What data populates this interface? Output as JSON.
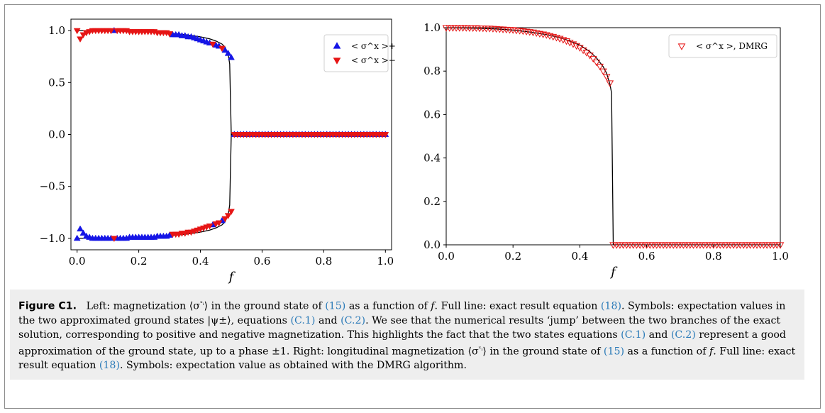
{
  "chart_data": [
    {
      "type": "scatter",
      "xlabel": "f",
      "ylabel": "",
      "xlim": [
        -0.02,
        1.02
      ],
      "ylim": [
        -1.11,
        1.11
      ],
      "xticks": [
        "0.0",
        "0.2",
        "0.4",
        "0.6",
        "0.8",
        "1.0"
      ],
      "yticks": [
        "−1.0",
        "−0.5",
        "0.0",
        "0.5",
        "1.0"
      ],
      "legend_position": "top-right",
      "exact_line_color": "#000000",
      "series": [
        {
          "name": "< σ^x >+",
          "marker": "triangle-up",
          "color": "#1515e6",
          "x": [
            0.0,
            0.01,
            0.02,
            0.03,
            0.04,
            0.05,
            0.06,
            0.07,
            0.08,
            0.09,
            0.1,
            0.11,
            0.12,
            0.13,
            0.14,
            0.15,
            0.16,
            0.17,
            0.18,
            0.19,
            0.2,
            0.21,
            0.22,
            0.23,
            0.24,
            0.25,
            0.26,
            0.27,
            0.28,
            0.29,
            0.3,
            0.31,
            0.32,
            0.33,
            0.34,
            0.35,
            0.36,
            0.37,
            0.38,
            0.39,
            0.4,
            0.41,
            0.42,
            0.43,
            0.44,
            0.45,
            0.46,
            0.47,
            0.48,
            0.49,
            0.5,
            0.51,
            0.52,
            0.53,
            0.54,
            0.55,
            0.56,
            0.57,
            0.58,
            0.59,
            0.6,
            0.61,
            0.62,
            0.63,
            0.64,
            0.65,
            0.66,
            0.67,
            0.68,
            0.69,
            0.7,
            0.71,
            0.72,
            0.73,
            0.74,
            0.75,
            0.76,
            0.77,
            0.78,
            0.79,
            0.8,
            0.81,
            0.82,
            0.83,
            0.84,
            0.85,
            0.86,
            0.87,
            0.88,
            0.89,
            0.9,
            0.91,
            0.92,
            0.93,
            0.94,
            0.95,
            0.96,
            0.97,
            0.98,
            0.99,
            1.0
          ],
          "y": [
            -1.0,
            -0.91,
            -0.95,
            -0.98,
            -0.99,
            -1.0,
            -1.0,
            -1.0,
            -1.0,
            -1.0,
            -1.0,
            -1.0,
            1.0,
            -1.0,
            -1.0,
            -1.0,
            -1.0,
            -0.99,
            -0.99,
            -0.99,
            -0.99,
            -0.99,
            -0.99,
            -0.99,
            -0.99,
            -0.99,
            -0.98,
            -0.98,
            -0.98,
            -0.98,
            -0.97,
            0.96,
            0.96,
            0.96,
            0.95,
            0.95,
            0.94,
            0.94,
            0.93,
            0.92,
            0.91,
            0.9,
            0.89,
            0.88,
            -0.87,
            0.86,
            0.85,
            -0.83,
            0.81,
            0.78,
            0.74,
            0.0,
            0.0,
            0.0,
            0.0,
            0.0,
            0.0,
            0.0,
            0.0,
            0.0,
            0.0,
            0.0,
            0.0,
            0.0,
            0.0,
            0.0,
            0.0,
            0.0,
            0.0,
            0.0,
            0.0,
            0.0,
            0.0,
            0.0,
            0.0,
            0.0,
            0.0,
            0.0,
            0.0,
            0.0,
            0.0,
            0.0,
            0.0,
            0.0,
            0.0,
            0.0,
            0.0,
            0.0,
            0.0,
            0.0,
            0.0,
            0.0,
            0.0,
            0.0,
            0.0,
            0.0,
            0.0,
            0.0,
            0.0,
            0.0,
            0.0
          ]
        },
        {
          "name": "< σ^x >−",
          "marker": "triangle-down",
          "color": "#e61515",
          "x": [
            0.0,
            0.01,
            0.02,
            0.03,
            0.04,
            0.05,
            0.06,
            0.07,
            0.08,
            0.09,
            0.1,
            0.11,
            0.12,
            0.13,
            0.14,
            0.15,
            0.16,
            0.17,
            0.18,
            0.19,
            0.2,
            0.21,
            0.22,
            0.23,
            0.24,
            0.25,
            0.26,
            0.27,
            0.28,
            0.29,
            0.3,
            0.31,
            0.32,
            0.33,
            0.34,
            0.35,
            0.36,
            0.37,
            0.38,
            0.39,
            0.4,
            0.41,
            0.42,
            0.43,
            0.44,
            0.45,
            0.46,
            0.47,
            0.48,
            0.49,
            0.5,
            0.51,
            0.52,
            0.53,
            0.54,
            0.55,
            0.56,
            0.57,
            0.58,
            0.59,
            0.6,
            0.61,
            0.62,
            0.63,
            0.64,
            0.65,
            0.66,
            0.67,
            0.68,
            0.69,
            0.7,
            0.71,
            0.72,
            0.73,
            0.74,
            0.75,
            0.76,
            0.77,
            0.78,
            0.79,
            0.8,
            0.81,
            0.82,
            0.83,
            0.84,
            0.85,
            0.86,
            0.87,
            0.88,
            0.89,
            0.9,
            0.91,
            0.92,
            0.93,
            0.94,
            0.95,
            0.96,
            0.97,
            0.98,
            0.99,
            1.0
          ],
          "y": [
            1.0,
            0.92,
            0.96,
            0.98,
            0.99,
            1.0,
            1.0,
            1.0,
            1.0,
            1.0,
            1.0,
            1.0,
            -1.0,
            1.0,
            1.0,
            1.0,
            1.0,
            0.99,
            0.99,
            0.99,
            0.99,
            0.99,
            0.99,
            0.99,
            0.99,
            0.99,
            0.98,
            0.98,
            0.98,
            0.98,
            0.97,
            -0.96,
            -0.96,
            -0.96,
            -0.95,
            -0.95,
            -0.94,
            -0.94,
            -0.93,
            -0.92,
            -0.91,
            -0.9,
            -0.89,
            -0.88,
            0.87,
            -0.86,
            -0.85,
            0.83,
            -0.81,
            -0.78,
            -0.74,
            0.0,
            0.0,
            0.0,
            0.0,
            0.0,
            0.0,
            0.0,
            0.0,
            0.0,
            0.0,
            0.0,
            0.0,
            0.0,
            0.0,
            0.0,
            0.0,
            0.0,
            0.0,
            0.0,
            0.0,
            0.0,
            0.0,
            0.0,
            0.0,
            0.0,
            0.0,
            0.0,
            0.0,
            0.0,
            0.0,
            0.0,
            0.0,
            0.0,
            0.0,
            0.0,
            0.0,
            0.0,
            0.0,
            0.0,
            0.0,
            0.0,
            0.0,
            0.0,
            0.0,
            0.0,
            0.0,
            0.0,
            0.0,
            0.0,
            0.0
          ]
        }
      ],
      "exact_line": {
        "x": [
          0.0,
          0.05,
          0.1,
          0.15,
          0.2,
          0.25,
          0.3,
          0.35,
          0.4,
          0.43,
          0.45,
          0.47,
          0.48,
          0.49,
          0.495,
          0.5,
          0.505,
          0.55,
          0.6,
          0.7,
          0.8,
          0.9,
          1.0
        ],
        "y_upper": [
          1.0,
          1.0,
          0.997,
          0.994,
          0.989,
          0.983,
          0.974,
          0.961,
          0.94,
          0.92,
          0.9,
          0.87,
          0.84,
          0.77,
          0.68,
          0.0,
          0.0,
          0.0,
          0.0,
          0.0,
          0.0,
          0.0,
          0.0
        ]
      }
    },
    {
      "type": "scatter",
      "xlabel": "f",
      "ylabel": "",
      "xlim": [
        0.0,
        1.0
      ],
      "ylim": [
        0.0,
        1.0
      ],
      "xticks": [
        "0.0",
        "0.2",
        "0.4",
        "0.6",
        "0.8",
        "1.0"
      ],
      "yticks": [
        "0.0",
        "0.2",
        "0.4",
        "0.6",
        "0.8",
        "1.0"
      ],
      "legend_position": "top-right",
      "exact_line_color": "#000000",
      "series": [
        {
          "name": "< σ^x >, DMRG",
          "marker": "triangle-down-open",
          "color": "#e61515",
          "x": [
            0.0,
            0.01,
            0.02,
            0.03,
            0.04,
            0.05,
            0.06,
            0.07,
            0.08,
            0.09,
            0.1,
            0.11,
            0.12,
            0.13,
            0.14,
            0.15,
            0.16,
            0.17,
            0.18,
            0.19,
            0.2,
            0.21,
            0.22,
            0.23,
            0.24,
            0.25,
            0.26,
            0.27,
            0.28,
            0.29,
            0.3,
            0.31,
            0.32,
            0.33,
            0.34,
            0.35,
            0.36,
            0.37,
            0.38,
            0.39,
            0.4,
            0.41,
            0.42,
            0.43,
            0.44,
            0.45,
            0.46,
            0.47,
            0.48,
            0.49,
            0.5,
            0.51,
            0.52,
            0.53,
            0.54,
            0.55,
            0.56,
            0.57,
            0.58,
            0.59,
            0.6,
            0.61,
            0.62,
            0.63,
            0.64,
            0.65,
            0.66,
            0.67,
            0.68,
            0.69,
            0.7,
            0.71,
            0.72,
            0.73,
            0.74,
            0.75,
            0.76,
            0.77,
            0.78,
            0.79,
            0.8,
            0.81,
            0.82,
            0.83,
            0.84,
            0.85,
            0.86,
            0.87,
            0.88,
            0.89,
            0.9,
            0.91,
            0.92,
            0.93,
            0.94,
            0.95,
            0.96,
            0.97,
            0.98,
            0.99,
            1.0
          ],
          "y": [
            1.0,
            1.0,
            1.0,
            1.0,
            1.0,
            1.0,
            1.0,
            0.999,
            0.999,
            0.999,
            0.998,
            0.998,
            0.997,
            0.997,
            0.996,
            0.995,
            0.994,
            0.993,
            0.992,
            0.991,
            0.99,
            0.988,
            0.987,
            0.985,
            0.983,
            0.981,
            0.979,
            0.976,
            0.973,
            0.97,
            0.967,
            0.963,
            0.959,
            0.955,
            0.95,
            0.945,
            0.939,
            0.932,
            0.925,
            0.917,
            0.908,
            0.897,
            0.886,
            0.873,
            0.858,
            0.841,
            0.822,
            0.8,
            0.775,
            0.745,
            0.0,
            0.0,
            0.0,
            0.0,
            0.0,
            0.0,
            0.0,
            0.0,
            0.0,
            0.0,
            0.0,
            0.0,
            0.0,
            0.0,
            0.0,
            0.0,
            0.0,
            0.0,
            0.0,
            0.0,
            0.0,
            0.0,
            0.0,
            0.0,
            0.0,
            0.0,
            0.0,
            0.0,
            0.0,
            0.0,
            0.0,
            0.0,
            0.0,
            0.0,
            0.0,
            0.0,
            0.0,
            0.0,
            0.0,
            0.0,
            0.0,
            0.0,
            0.0,
            0.0,
            0.0,
            0.0,
            0.0,
            0.0,
            0.0,
            0.0,
            0.0
          ]
        }
      ],
      "exact_line": {
        "x": [
          0.0,
          0.05,
          0.1,
          0.15,
          0.2,
          0.25,
          0.3,
          0.35,
          0.4,
          0.43,
          0.45,
          0.47,
          0.48,
          0.49,
          0.495,
          0.5,
          0.505,
          0.55,
          0.6,
          0.7,
          0.8,
          0.9,
          1.0
        ],
        "y": [
          1.0,
          0.999,
          0.997,
          0.994,
          0.989,
          0.98,
          0.968,
          0.95,
          0.92,
          0.89,
          0.86,
          0.82,
          0.79,
          0.74,
          0.7,
          0.0,
          0.0,
          0.0,
          0.0,
          0.0,
          0.0,
          0.0,
          0.0
        ]
      }
    }
  ],
  "caption": {
    "label": "Figure C1.",
    "text": [
      "Left: magnetization ⟨σ",
      "ˣᵢ",
      "⟩ in the ground state of ",
      "(15)",
      " as a function of ",
      "f",
      ". Full line: exact result equation ",
      "(18)",
      ". Symbols: expectation values in the two approximated ground states |ψ±⟩, equations ",
      "(C.1)",
      " and ",
      "(C.2)",
      ". We see that the numerical results ‘jump’ between the two branches of the exact solution, corresponding to positive and negative magnetization. This highlights the fact that the two states equations ",
      "(C.1)",
      " and ",
      "(C.2)",
      " represent a good approximation of the ground state, up to a phase ±1. Right: longitudinal magnetization ⟨σ",
      "ˣᵢ",
      "⟩ in the ground state of ",
      "(15)",
      " as a function of ",
      "f",
      ". Full line: exact result equation ",
      "(18)",
      ". Symbols: expectation value as obtained with the DMRG algorithm."
    ]
  }
}
